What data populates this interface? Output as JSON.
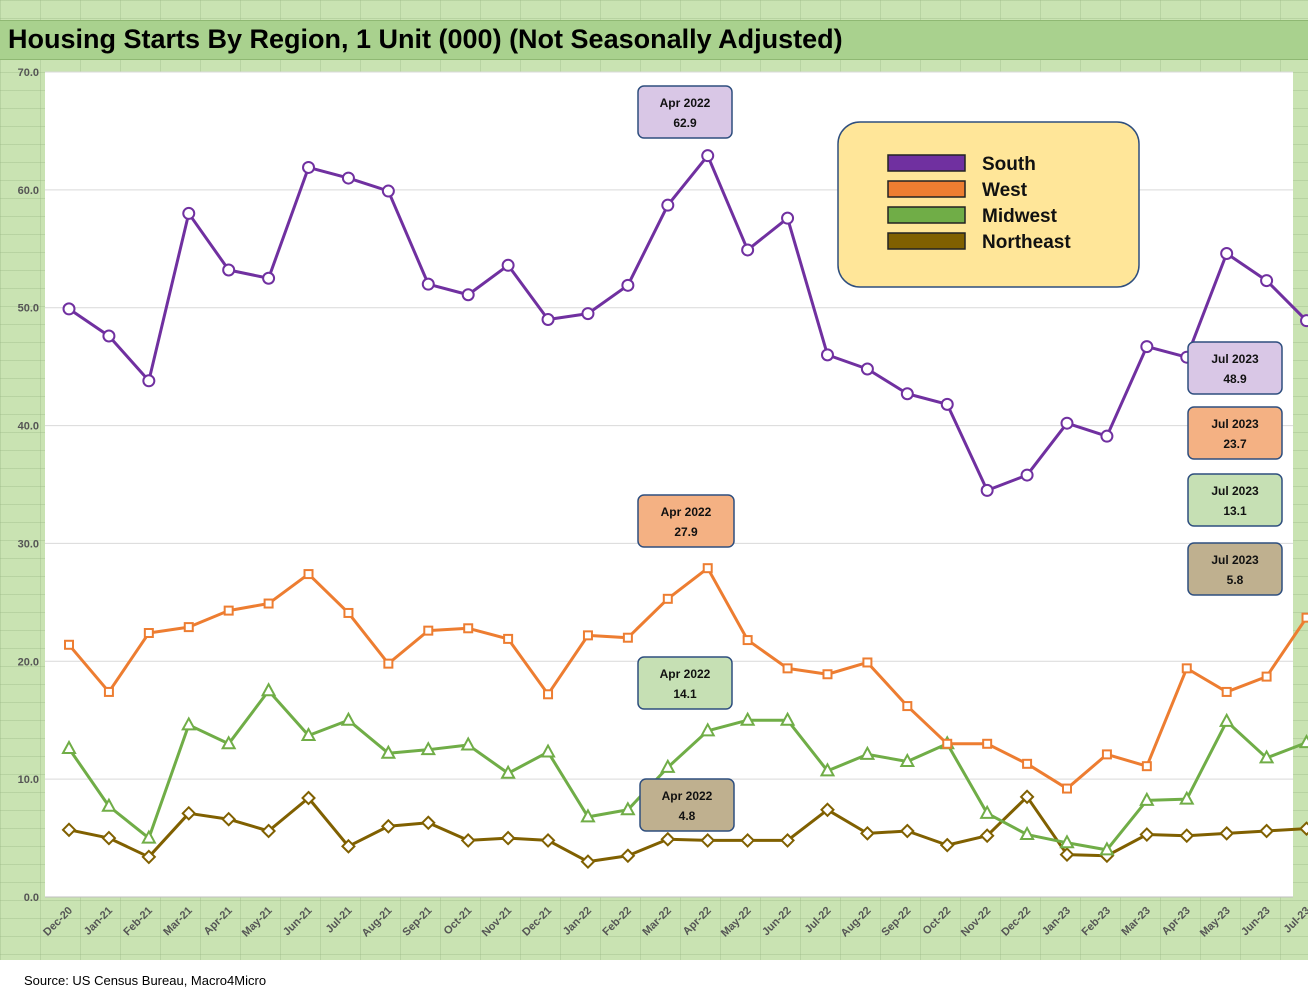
{
  "title": "Housing Starts By Region, 1 Unit (000) (Not Seasonally Adjusted)",
  "source": "Source: US Census Bureau, Macro4Micro",
  "chart_data": {
    "type": "line",
    "title": "Housing Starts By Region, 1 Unit (000) (Not Seasonally Adjusted)",
    "xlabel": "",
    "ylabel": "",
    "ylim": [
      0,
      70
    ],
    "yticks": [
      "0.0",
      "10.0",
      "20.0",
      "30.0",
      "40.0",
      "50.0",
      "60.0",
      "70.0"
    ],
    "grid": true,
    "legend_placement": "top-right",
    "categories": [
      "Dec-20",
      "Jan-21",
      "Feb-21",
      "Mar-21",
      "Apr-21",
      "May-21",
      "Jun-21",
      "Jul-21",
      "Aug-21",
      "Sep-21",
      "Oct-21",
      "Nov-21",
      "Dec-21",
      "Jan-22",
      "Feb-22",
      "Mar-22",
      "Apr-22",
      "May-22",
      "Jun-22",
      "Jul-22",
      "Aug-22",
      "Sep-22",
      "Oct-22",
      "Nov-22",
      "Dec-22",
      "Jan-23",
      "Feb-23",
      "Mar-23",
      "Apr-23",
      "May-23",
      "Jun-23",
      "Jul-23"
    ],
    "series": [
      {
        "name": "South",
        "color": "#7030a0",
        "marker": "circle",
        "values": [
          49.9,
          47.6,
          43.8,
          58.0,
          53.2,
          52.5,
          61.9,
          61.0,
          59.9,
          52.0,
          51.1,
          53.6,
          49.0,
          49.5,
          51.9,
          58.7,
          62.9,
          54.9,
          57.6,
          46.0,
          44.8,
          42.7,
          41.8,
          34.5,
          35.8,
          40.2,
          39.1,
          46.7,
          45.8,
          54.6,
          52.3,
          48.9
        ]
      },
      {
        "name": "West",
        "color": "#ed7d31",
        "marker": "square",
        "values": [
          21.4,
          17.4,
          22.4,
          22.9,
          24.3,
          24.9,
          27.4,
          24.1,
          19.8,
          22.6,
          22.8,
          21.9,
          17.2,
          22.2,
          22.0,
          25.3,
          27.9,
          21.8,
          19.4,
          18.9,
          19.9,
          16.2,
          13.0,
          13.0,
          11.3,
          9.2,
          12.1,
          11.1,
          19.4,
          17.4,
          18.7,
          23.7
        ]
      },
      {
        "name": "Midwest",
        "color": "#70ad47",
        "marker": "triangle",
        "values": [
          12.6,
          7.7,
          5.0,
          14.6,
          13.0,
          17.5,
          13.7,
          15.0,
          12.2,
          12.5,
          12.9,
          10.5,
          12.3,
          6.8,
          7.4,
          11.0,
          14.1,
          15.0,
          15.0,
          10.7,
          12.1,
          11.5,
          13.0,
          7.1,
          5.3,
          4.6,
          4.0,
          8.2,
          8.3,
          14.9,
          11.8,
          13.1
        ]
      },
      {
        "name": "Northeast",
        "color": "#806000",
        "marker": "diamond",
        "values": [
          5.7,
          5.0,
          3.4,
          7.1,
          6.6,
          5.6,
          8.4,
          4.3,
          6.0,
          6.3,
          4.8,
          5.0,
          4.8,
          3.0,
          3.5,
          4.9,
          4.8,
          4.8,
          4.8,
          7.4,
          5.4,
          5.6,
          4.4,
          5.2,
          8.5,
          3.6,
          3.5,
          5.3,
          5.2,
          5.4,
          5.6,
          5.8
        ]
      }
    ],
    "annotations": [
      {
        "series": "South",
        "line1": "Apr 2022",
        "line2": "62.9",
        "fill": "#d9c7e6"
      },
      {
        "series": "West",
        "line1": "Apr 2022",
        "line2": "27.9",
        "fill": "#f4b183"
      },
      {
        "series": "Midwest",
        "line1": "Apr 2022",
        "line2": "14.1",
        "fill": "#c6e0b4"
      },
      {
        "series": "Northeast",
        "line1": "Apr 2022",
        "line2": "4.8",
        "fill": "#bfb08f"
      },
      {
        "series": "South",
        "line1": "Jul 2023",
        "line2": "48.9",
        "fill": "#d9c7e6"
      },
      {
        "series": "West",
        "line1": "Jul 2023",
        "line2": "23.7",
        "fill": "#f4b183"
      },
      {
        "series": "Midwest",
        "line1": "Jul 2023",
        "line2": "13.1",
        "fill": "#c6e0b4"
      },
      {
        "series": "Northeast",
        "line1": "Jul 2023",
        "line2": "5.8",
        "fill": "#bfb08f"
      }
    ],
    "legend_background": "#ffe699"
  }
}
